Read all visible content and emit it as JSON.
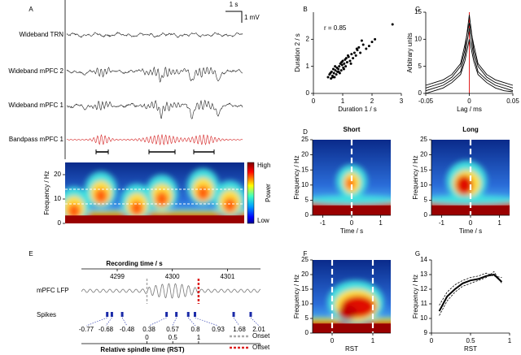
{
  "panel_labels": [
    "A",
    "B",
    "C",
    "D",
    "E",
    "F",
    "G"
  ],
  "panel_a": {
    "traces": [
      "Wideband TRN",
      "Wideband mPFC 2",
      "Wideband mPFC 1",
      "Bandpass mPFC 1"
    ],
    "scale_x": "1 s",
    "scale_y": "1 mV",
    "spectrogram": {
      "ylabel": "Frequency / Hz",
      "ylim": [
        0,
        25
      ],
      "yticks": [
        0,
        10,
        20
      ],
      "hlines": [
        14,
        8
      ],
      "colorbar": {
        "high": "High",
        "label": "Power",
        "low": "Low"
      }
    }
  },
  "panel_e": {
    "title": "Recording time / s",
    "xlim": [
      4298.35,
      4301.6
    ],
    "xticks": [
      4299,
      4300,
      4301
    ],
    "lfp_label": "mPFC LFP",
    "spikes_label": "Spikes",
    "spikes": [
      -0.77,
      -0.68,
      -0.48,
      0.38,
      0.57,
      0.8,
      0.93,
      1.68,
      2.01
    ],
    "rst_label": "Relative spindle time (RST)",
    "rst_lim": [
      -1.27,
      2.2
    ],
    "rst_ticks": [
      0,
      0.5,
      1
    ],
    "legend": [
      {
        "name": "Onset",
        "color": "#aaaaaa"
      },
      {
        "name": "Offset",
        "color": "#dd2222"
      }
    ]
  },
  "chart_data": [
    {
      "type": "scatter",
      "xlabel": "Duration 1 / s",
      "ylabel": "Duration 2 / s",
      "annotation": "r = 0.85",
      "color": "#000000",
      "x": [
        0.5,
        0.55,
        0.6,
        0.62,
        0.65,
        0.68,
        0.7,
        0.72,
        0.75,
        0.78,
        0.8,
        0.82,
        0.85,
        0.88,
        0.9,
        0.92,
        0.95,
        0.98,
        1.0,
        1.02,
        1.05,
        1.08,
        1.1,
        1.12,
        1.15,
        1.2,
        1.25,
        1.3,
        1.35,
        1.4,
        1.45,
        1.5,
        1.55,
        1.6,
        1.7,
        1.8,
        1.9,
        2.0,
        2.1,
        2.7,
        0.58,
        0.66,
        0.74,
        0.86,
        0.96,
        1.04,
        1.18,
        1.28,
        1.48,
        1.65
      ],
      "values": [
        0.6,
        0.7,
        0.55,
        0.8,
        0.65,
        0.9,
        0.75,
        0.6,
        0.85,
        0.7,
        0.95,
        0.8,
        0.9,
        1.0,
        0.75,
        1.1,
        0.85,
        1.05,
        1.2,
        0.95,
        1.1,
        1.25,
        1.0,
        1.3,
        1.15,
        1.35,
        1.2,
        1.45,
        1.3,
        1.5,
        1.4,
        1.6,
        1.7,
        1.5,
        1.8,
        1.65,
        1.75,
        1.9,
        2.0,
        2.55,
        0.75,
        0.6,
        1.0,
        0.8,
        1.15,
        0.9,
        1.4,
        1.1,
        1.65,
        1.95
      ],
      "xlim": [
        0,
        3
      ],
      "xticks": [
        0,
        1,
        2,
        3
      ],
      "ylim": [
        0,
        3
      ],
      "yticks": [
        0,
        1,
        2
      ]
    },
    {
      "type": "line",
      "xlabel": "Lag / ms",
      "ylabel": "Arbitrary units",
      "x": [
        -0.05,
        -0.04,
        -0.03,
        -0.02,
        -0.01,
        -0.005,
        0,
        0.005,
        0.01,
        0.02,
        0.03,
        0.04,
        0.05
      ],
      "series": [
        {
          "color": "#000000",
          "values": [
            1,
            1.5,
            2,
            3,
            5,
            8,
            14.5,
            8,
            5,
            3,
            2,
            1.5,
            1
          ]
        },
        {
          "color": "#000000",
          "values": [
            0.5,
            1,
            1.5,
            2.5,
            4,
            7,
            12,
            7,
            4,
            2.5,
            1.5,
            1,
            0.5
          ]
        },
        {
          "color": "#000000",
          "values": [
            0,
            0.5,
            1,
            2,
            3.5,
            6,
            10,
            6,
            3.5,
            2,
            1,
            0.5,
            0.3
          ]
        },
        {
          "color": "#000000",
          "values": [
            1.5,
            2,
            2.5,
            3.5,
            5.5,
            9,
            13,
            9,
            5.5,
            3.5,
            2.5,
            2,
            1.5
          ]
        }
      ],
      "vline": {
        "x": 0,
        "color": "#e02020"
      },
      "xlim": [
        -0.05,
        0.05
      ],
      "xticks": [
        -0.05,
        0,
        0.05
      ],
      "ylim": [
        0,
        15
      ],
      "yticks": [
        0,
        5,
        10,
        15
      ]
    },
    {
      "type": "heatmap",
      "title": "Short",
      "xlabel": "Time / s",
      "ylabel": "Frequency / Hz",
      "xlim": [
        -1.35,
        1.35
      ],
      "xticks": [
        -1,
        0,
        1
      ],
      "ylim": [
        0,
        25
      ],
      "yticks": [
        0,
        5,
        10,
        15,
        20,
        25
      ],
      "vlines": [
        0
      ]
    },
    {
      "type": "heatmap",
      "title": "Long",
      "xlabel": "Time / s",
      "ylabel": "Frequency / Hz",
      "xlim": [
        -1.35,
        1.35
      ],
      "xticks": [
        -1,
        0,
        1
      ],
      "ylim": [
        0,
        25
      ],
      "yticks": [
        0,
        5,
        10,
        15,
        20,
        25
      ],
      "vlines": [
        0
      ]
    },
    {
      "type": "heatmap",
      "xlabel": "RST",
      "ylabel": "Frequency / Hz",
      "xlim": [
        -0.48,
        1.44
      ],
      "xticks": [
        0,
        1
      ],
      "ylim": [
        0,
        25
      ],
      "yticks": [
        0,
        5,
        10,
        15,
        20,
        25
      ],
      "vlines": [
        0,
        1
      ]
    },
    {
      "type": "line",
      "xlabel": "RST",
      "ylabel": "Frequency / Hz",
      "x": [
        0.1,
        0.2,
        0.3,
        0.4,
        0.5,
        0.6,
        0.7,
        0.8,
        0.9
      ],
      "series": [
        {
          "color": "#000000",
          "dash": true,
          "values": [
            10.2,
            11.2,
            11.8,
            12.2,
            12.4,
            12.6,
            12.8,
            13.2,
            12.4
          ]
        },
        {
          "color": "#000000",
          "dash": true,
          "values": [
            10.9,
            11.8,
            12.3,
            12.6,
            12.8,
            12.9,
            13.1,
            12.9,
            12.8
          ]
        },
        {
          "color": "#000000",
          "dash": false,
          "values": [
            10.5,
            11.5,
            12.0,
            12.4,
            12.6,
            12.7,
            12.9,
            13.0,
            12.5
          ]
        }
      ],
      "xlim": [
        0,
        1
      ],
      "xticks": [
        0,
        0.5,
        1
      ],
      "ylim": [
        9,
        14
      ],
      "yticks": [
        9,
        10,
        11,
        12,
        13,
        14
      ]
    }
  ]
}
